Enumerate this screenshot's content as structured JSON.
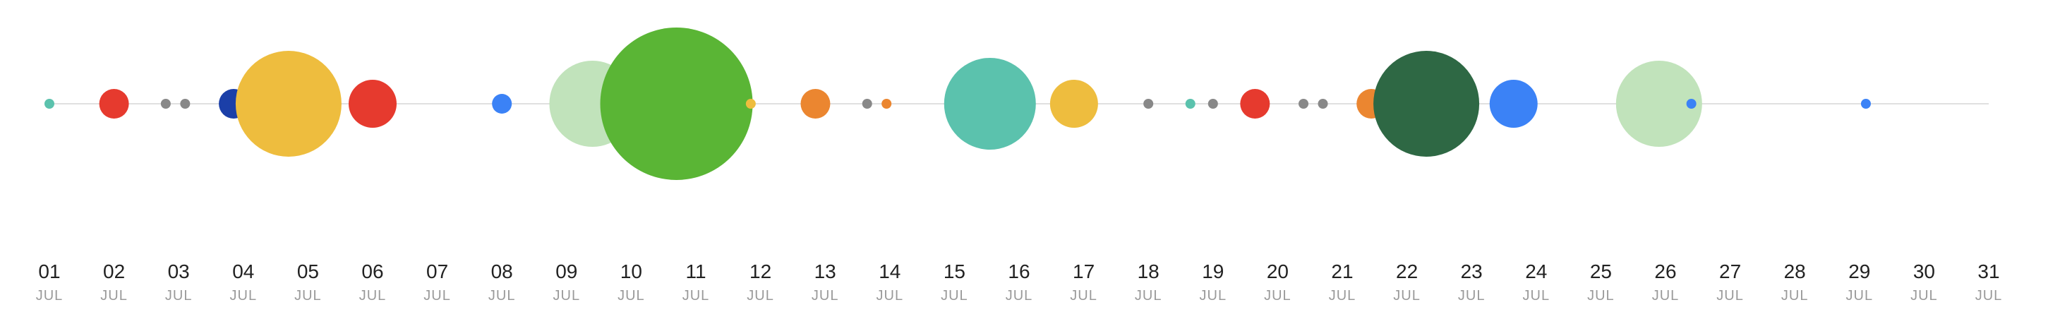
{
  "chart_data": {
    "type": "scatter",
    "title": "",
    "xlabel": "",
    "ylabel": "",
    "x_ticks": [
      {
        "day": "01",
        "month": "JUL"
      },
      {
        "day": "02",
        "month": "JUL"
      },
      {
        "day": "03",
        "month": "JUL"
      },
      {
        "day": "04",
        "month": "JUL"
      },
      {
        "day": "05",
        "month": "JUL"
      },
      {
        "day": "06",
        "month": "JUL"
      },
      {
        "day": "07",
        "month": "JUL"
      },
      {
        "day": "08",
        "month": "JUL"
      },
      {
        "day": "09",
        "month": "JUL"
      },
      {
        "day": "10",
        "month": "JUL"
      },
      {
        "day": "11",
        "month": "JUL"
      },
      {
        "day": "12",
        "month": "JUL"
      },
      {
        "day": "13",
        "month": "JUL"
      },
      {
        "day": "14",
        "month": "JUL"
      },
      {
        "day": "15",
        "month": "JUL"
      },
      {
        "day": "16",
        "month": "JUL"
      },
      {
        "day": "17",
        "month": "JUL"
      },
      {
        "day": "18",
        "month": "JUL"
      },
      {
        "day": "19",
        "month": "JUL"
      },
      {
        "day": "20",
        "month": "JUL"
      },
      {
        "day": "21",
        "month": "JUL"
      },
      {
        "day": "22",
        "month": "JUL"
      },
      {
        "day": "23",
        "month": "JUL"
      },
      {
        "day": "24",
        "month": "JUL"
      },
      {
        "day": "25",
        "month": "JUL"
      },
      {
        "day": "26",
        "month": "JUL"
      },
      {
        "day": "27",
        "month": "JUL"
      },
      {
        "day": "28",
        "month": "JUL"
      },
      {
        "day": "29",
        "month": "JUL"
      },
      {
        "day": "30",
        "month": "JUL"
      },
      {
        "day": "31",
        "month": "JUL"
      }
    ],
    "xlim": [
      1,
      31
    ],
    "axis_line_color": "#e0e0e0",
    "points": [
      {
        "day": 1.0,
        "size": 7,
        "color": "#5bc2ad"
      },
      {
        "day": 2.0,
        "size": 21,
        "color": "#e63a2e"
      },
      {
        "day": 2.8,
        "size": 7,
        "color": "#888888"
      },
      {
        "day": 3.1,
        "size": 7,
        "color": "#888888"
      },
      {
        "day": 3.85,
        "size": 21,
        "color": "#1b3fa8"
      },
      {
        "day": 4.7,
        "size": 75,
        "color": "#eebd3e"
      },
      {
        "day": 6.0,
        "size": 34,
        "color": "#e63a2e"
      },
      {
        "day": 8.0,
        "size": 14,
        "color": "#3b82f6"
      },
      {
        "day": 9.4,
        "size": 61,
        "color": "#c1e3bb"
      },
      {
        "day": 10.7,
        "size": 108,
        "color": "#5ab535"
      },
      {
        "day": 11.85,
        "size": 7,
        "color": "#eebd3e"
      },
      {
        "day": 12.85,
        "size": 21,
        "color": "#eb8630"
      },
      {
        "day": 13.65,
        "size": 7,
        "color": "#888888"
      },
      {
        "day": 13.95,
        "size": 7,
        "color": "#eb8630"
      },
      {
        "day": 15.55,
        "size": 65,
        "color": "#5bc2ad"
      },
      {
        "day": 16.85,
        "size": 34,
        "color": "#eebd3e"
      },
      {
        "day": 18.0,
        "size": 7,
        "color": "#888888"
      },
      {
        "day": 18.65,
        "size": 7,
        "color": "#5bc2ad"
      },
      {
        "day": 19.0,
        "size": 7,
        "color": "#888888"
      },
      {
        "day": 19.65,
        "size": 21,
        "color": "#e63a2e"
      },
      {
        "day": 20.4,
        "size": 7,
        "color": "#888888"
      },
      {
        "day": 20.7,
        "size": 7,
        "color": "#888888"
      },
      {
        "day": 21.45,
        "size": 21,
        "color": "#eb8630"
      },
      {
        "day": 22.3,
        "size": 75,
        "color": "#2e6844"
      },
      {
        "day": 23.65,
        "size": 34,
        "color": "#3b82f6"
      },
      {
        "day": 25.9,
        "size": 61,
        "color": "#c1e3bb"
      },
      {
        "day": 26.4,
        "size": 7,
        "color": "#3b82f6"
      },
      {
        "day": 29.1,
        "size": 7,
        "color": "#3b82f6"
      }
    ],
    "size_note_unit": "relative bubble diameter",
    "grid": false,
    "legend": "none"
  }
}
